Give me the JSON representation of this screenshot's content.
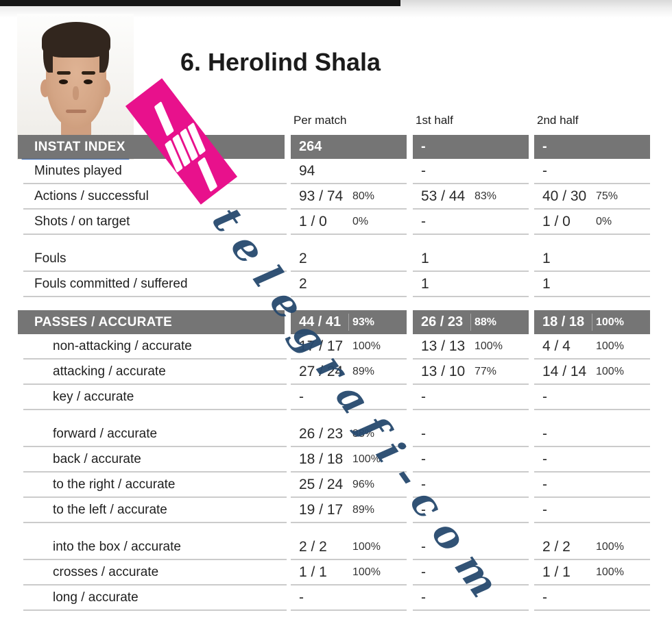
{
  "header": {
    "title": "6. Herolind Shala"
  },
  "columns": [
    "Per match",
    "1st half",
    "2nd half"
  ],
  "watermark": {
    "text": "telegrafi-com",
    "color": "#26496e"
  },
  "stamp": {
    "icon": "instat-logo",
    "color": "#e8118c"
  },
  "colors": {
    "bar_gray": "#757575",
    "rule_gray": "#cbcbcb",
    "shirt_blue": "#3a68b4"
  },
  "table": {
    "rows": [
      {
        "type": "bar",
        "label": "INSTAT INDEX",
        "cells": [
          {
            "v": "264",
            "p": ""
          },
          {
            "v": "-",
            "p": ""
          },
          {
            "v": "-",
            "p": ""
          }
        ]
      },
      {
        "type": "row",
        "label": "Minutes played",
        "indent": false,
        "gap": false,
        "cells": [
          {
            "v": "94",
            "p": ""
          },
          {
            "v": "-",
            "p": ""
          },
          {
            "v": "-",
            "p": ""
          }
        ]
      },
      {
        "type": "row",
        "label": "Actions / successful",
        "indent": false,
        "gap": false,
        "cells": [
          {
            "v": "93 / 74",
            "p": "80%"
          },
          {
            "v": "53 / 44",
            "p": "83%"
          },
          {
            "v": "40 / 30",
            "p": "75%"
          }
        ]
      },
      {
        "type": "row",
        "label": "Shots / on target",
        "indent": false,
        "gap": false,
        "cells": [
          {
            "v": "1 / 0",
            "p": "0%"
          },
          {
            "v": "-",
            "p": ""
          },
          {
            "v": "1 / 0",
            "p": "0%"
          }
        ]
      },
      {
        "type": "row",
        "label": "Fouls",
        "indent": false,
        "gap": true,
        "cells": [
          {
            "v": "2",
            "p": ""
          },
          {
            "v": "1",
            "p": ""
          },
          {
            "v": "1",
            "p": ""
          }
        ]
      },
      {
        "type": "row",
        "label": "Fouls committed / suffered",
        "indent": false,
        "gap": false,
        "cells": [
          {
            "v": "2",
            "p": ""
          },
          {
            "v": "1",
            "p": ""
          },
          {
            "v": "1",
            "p": ""
          }
        ]
      },
      {
        "type": "bar",
        "label": "PASSES / ACCURATE",
        "gap": true,
        "cells": [
          {
            "v": "44 / 41",
            "p": "93%"
          },
          {
            "v": "26 / 23",
            "p": "88%"
          },
          {
            "v": "18 / 18",
            "p": "100%"
          }
        ]
      },
      {
        "type": "row",
        "label": "non-attacking / accurate",
        "indent": true,
        "gap": false,
        "cells": [
          {
            "v": "17 / 17",
            "p": "100%"
          },
          {
            "v": "13 / 13",
            "p": "100%"
          },
          {
            "v": "4 / 4",
            "p": "100%"
          }
        ]
      },
      {
        "type": "row",
        "label": "attacking / accurate",
        "indent": true,
        "gap": false,
        "cells": [
          {
            "v": "27 / 24",
            "p": "89%"
          },
          {
            "v": "13 / 10",
            "p": "77%"
          },
          {
            "v": "14 / 14",
            "p": "100%"
          }
        ]
      },
      {
        "type": "row",
        "label": "key / accurate",
        "indent": true,
        "gap": false,
        "cells": [
          {
            "v": "-",
            "p": ""
          },
          {
            "v": "-",
            "p": ""
          },
          {
            "v": "-",
            "p": ""
          }
        ]
      },
      {
        "type": "row",
        "label": "forward / accurate",
        "indent": true,
        "gap": true,
        "cells": [
          {
            "v": "26 / 23",
            "p": "88%"
          },
          {
            "v": "-",
            "p": ""
          },
          {
            "v": "-",
            "p": ""
          }
        ]
      },
      {
        "type": "row",
        "label": "back / accurate",
        "indent": true,
        "gap": false,
        "cells": [
          {
            "v": "18 / 18",
            "p": "100%"
          },
          {
            "v": "-",
            "p": ""
          },
          {
            "v": "-",
            "p": ""
          }
        ]
      },
      {
        "type": "row",
        "label": "to the right / accurate",
        "indent": true,
        "gap": false,
        "cells": [
          {
            "v": "25 / 24",
            "p": "96%"
          },
          {
            "v": "-",
            "p": ""
          },
          {
            "v": "-",
            "p": ""
          }
        ]
      },
      {
        "type": "row",
        "label": "to the left / accurate",
        "indent": true,
        "gap": false,
        "cells": [
          {
            "v": "19 / 17",
            "p": "89%"
          },
          {
            "v": "-",
            "p": ""
          },
          {
            "v": "-",
            "p": ""
          }
        ]
      },
      {
        "type": "row",
        "label": "into the box / accurate",
        "indent": true,
        "gap": true,
        "cells": [
          {
            "v": "2 / 2",
            "p": "100%"
          },
          {
            "v": "-",
            "p": ""
          },
          {
            "v": "2 / 2",
            "p": "100%"
          }
        ]
      },
      {
        "type": "row",
        "label": "crosses / accurate",
        "indent": true,
        "gap": false,
        "cells": [
          {
            "v": "1 / 1",
            "p": "100%"
          },
          {
            "v": "-",
            "p": ""
          },
          {
            "v": "1 / 1",
            "p": "100%"
          }
        ]
      },
      {
        "type": "row",
        "label": "long / accurate",
        "indent": true,
        "gap": false,
        "cells": [
          {
            "v": "-",
            "p": ""
          },
          {
            "v": "-",
            "p": ""
          },
          {
            "v": "-",
            "p": ""
          }
        ]
      }
    ]
  }
}
